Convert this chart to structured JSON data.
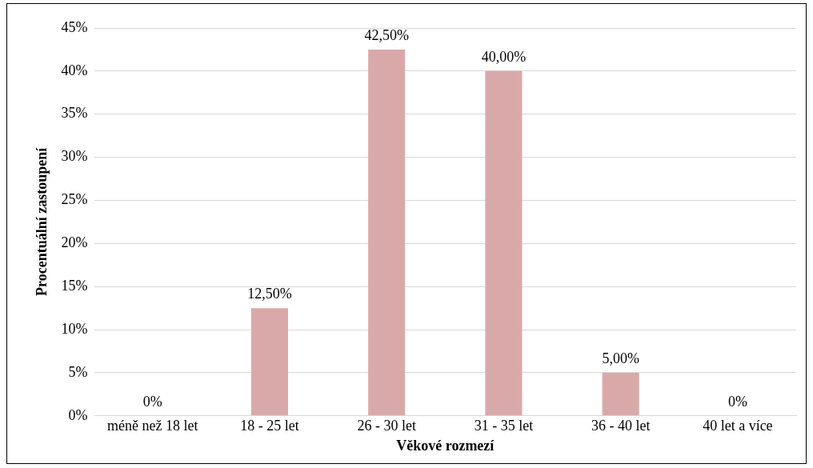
{
  "chart_data": {
    "type": "bar",
    "xlabel": "Věkové rozmezí",
    "ylabel": "Procentuální zastoupení",
    "categories": [
      "méně než 18 let",
      "18 - 25 let",
      "26 - 30 let",
      "31 - 35 let",
      "36 - 40 let",
      "40 let a více"
    ],
    "values": [
      0,
      12.5,
      42.5,
      40,
      5,
      0
    ],
    "value_labels": [
      "0%",
      "12,50%",
      "42,50%",
      "40,00%",
      "5,00%",
      "0%"
    ],
    "color": "#d9a9a9",
    "ylim": [
      0,
      45
    ],
    "yticks": [
      {
        "value": 0,
        "label": "0%"
      },
      {
        "value": 5,
        "label": "5%"
      },
      {
        "value": 10,
        "label": "10%"
      },
      {
        "value": 15,
        "label": "15%"
      },
      {
        "value": 20,
        "label": "20%"
      },
      {
        "value": 25,
        "label": "25%"
      },
      {
        "value": 30,
        "label": "30%"
      },
      {
        "value": 35,
        "label": "35%"
      },
      {
        "value": 40,
        "label": "40%"
      },
      {
        "value": 45,
        "label": "45%"
      }
    ],
    "grid": "y",
    "legend": false
  }
}
